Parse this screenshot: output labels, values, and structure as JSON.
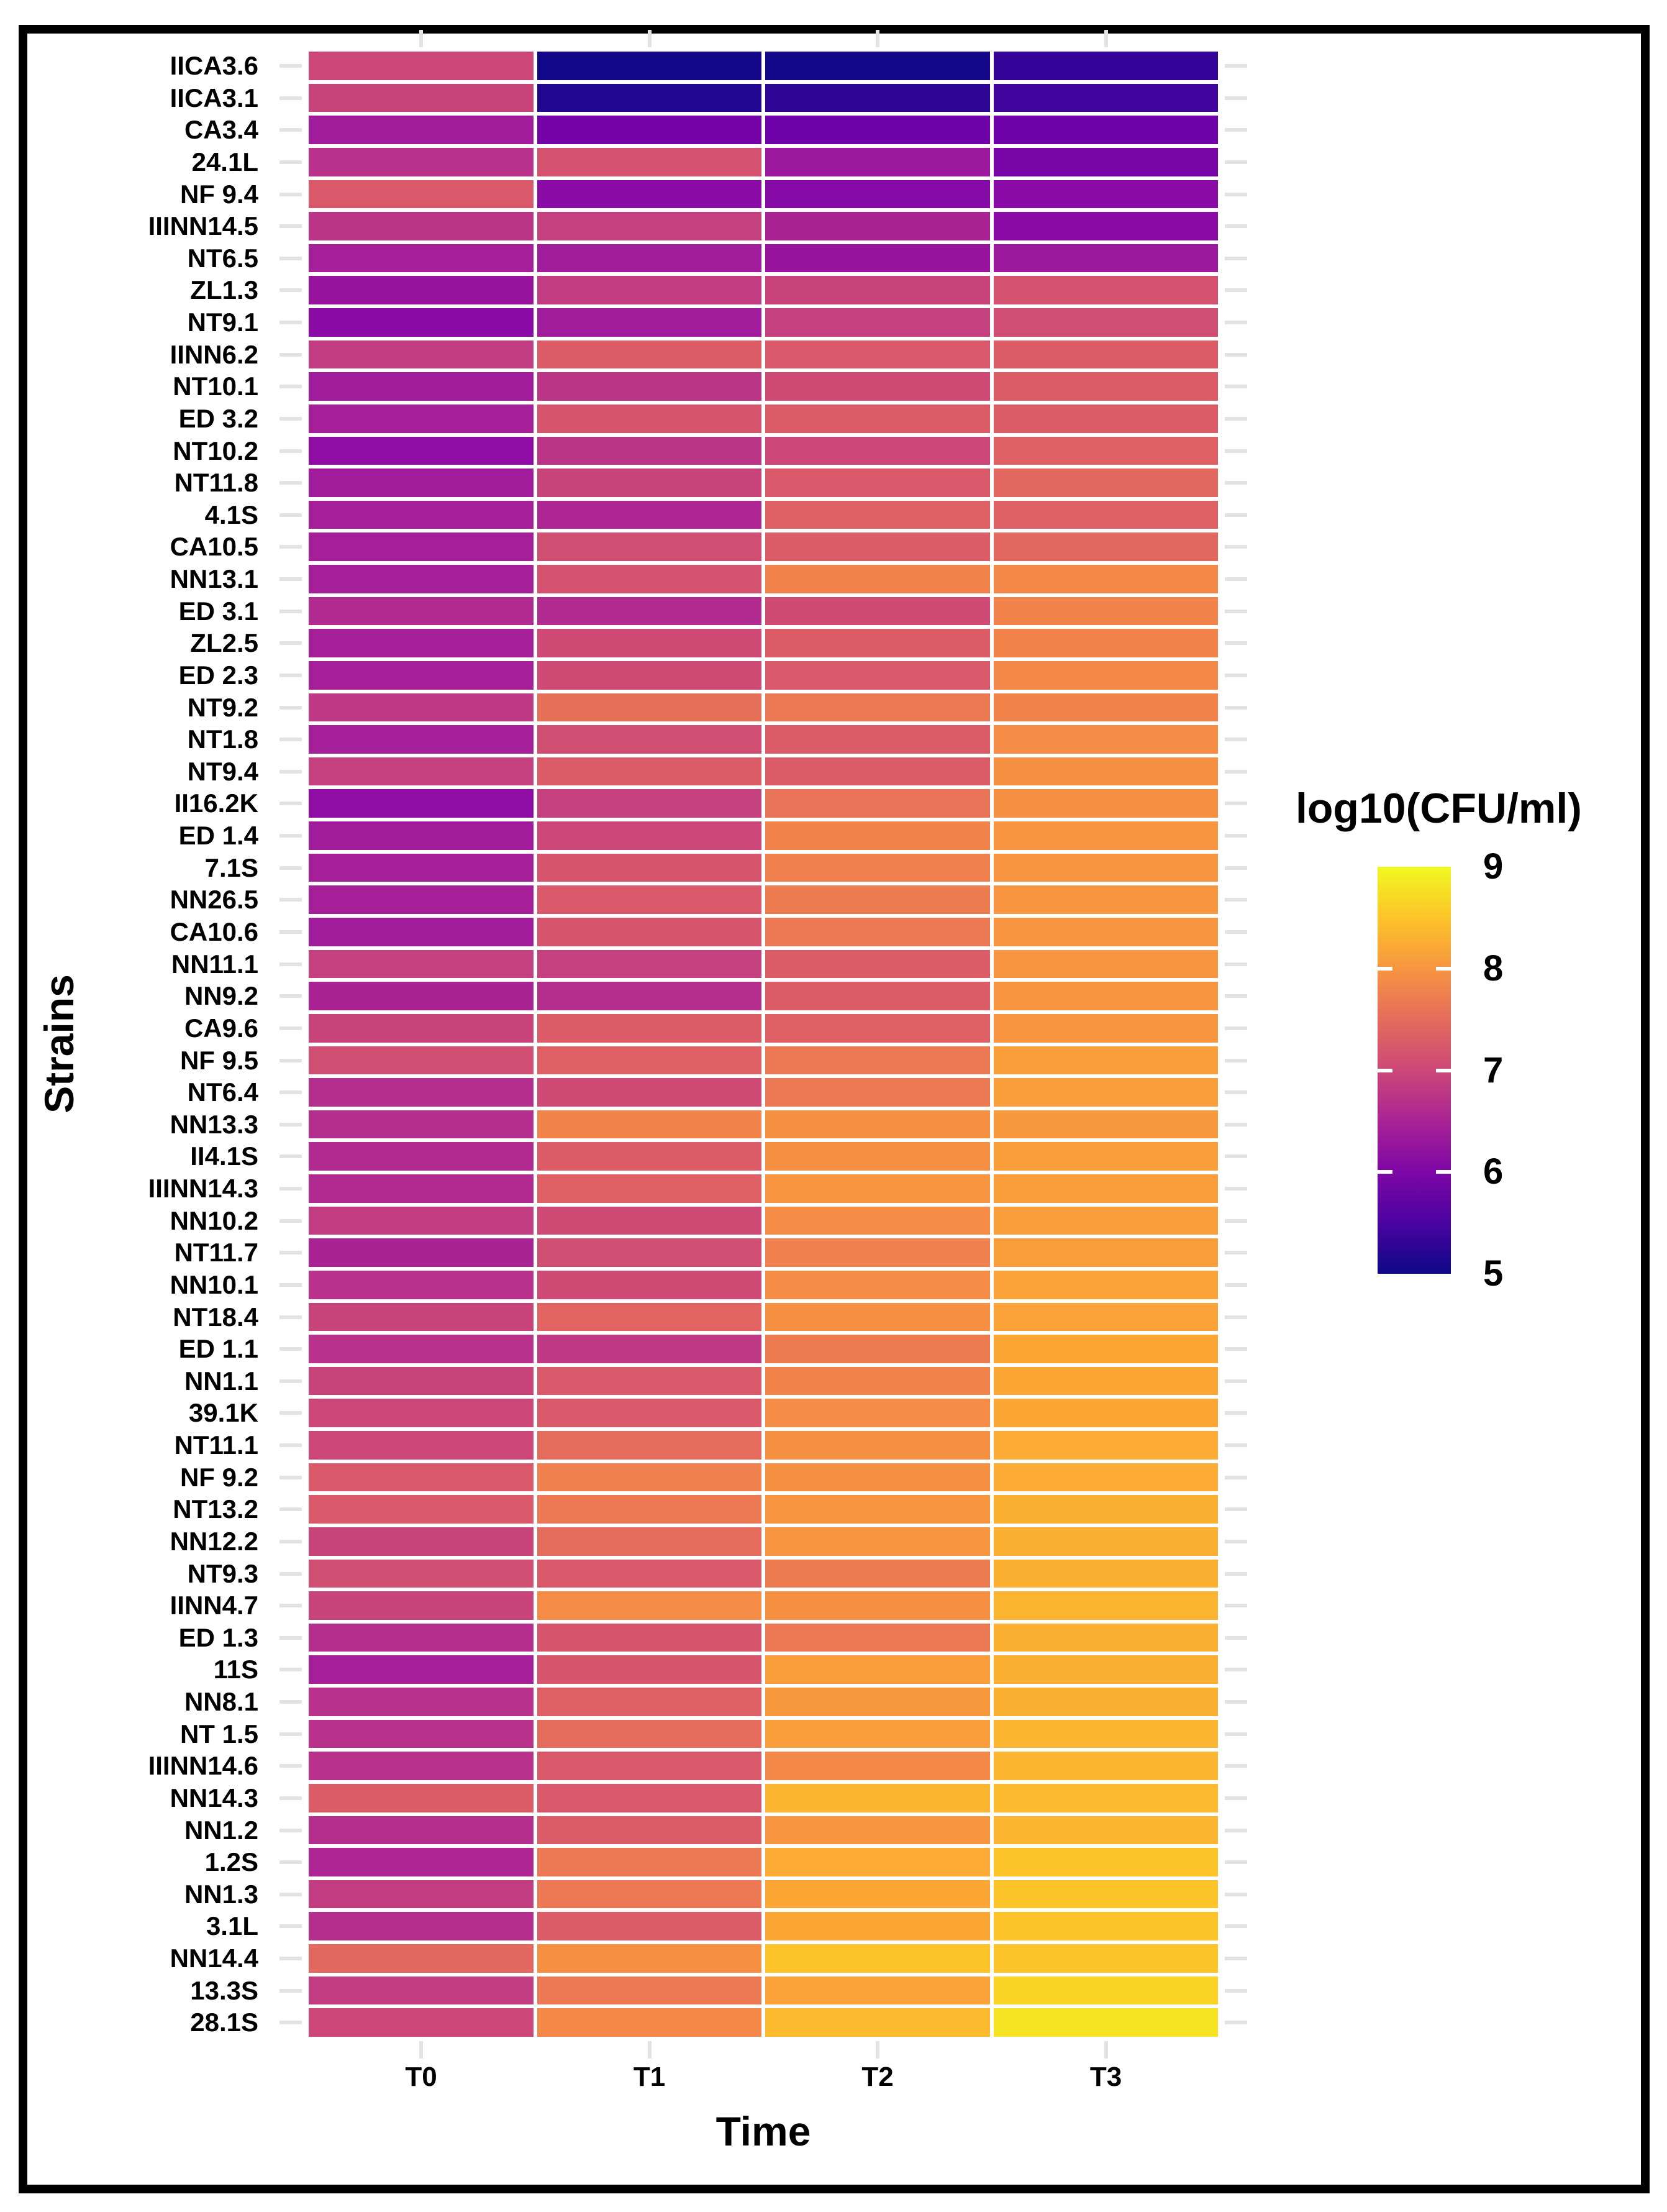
{
  "chart_data": {
    "type": "heatmap",
    "title": "",
    "xlabel": "Time",
    "ylabel": "Strains",
    "x_categories": [
      "T0",
      "T1",
      "T2",
      "T3"
    ],
    "value_range": [
      5,
      9
    ],
    "colormap": "plasma",
    "grid": "off",
    "legend": {
      "title": "log10(CFU/ml)",
      "position": "right",
      "ticks": [
        "9",
        "8",
        "7",
        "6",
        "5"
      ]
    },
    "rows": [
      {
        "strain": "IICA3.6",
        "values": [
          7.0,
          5.05,
          5.05,
          5.3
        ]
      },
      {
        "strain": "IICA3.1",
        "values": [
          6.95,
          5.15,
          5.25,
          5.4
        ]
      },
      {
        "strain": "CA3.4",
        "values": [
          6.4,
          5.9,
          5.85,
          5.85
        ]
      },
      {
        "strain": "24.1L",
        "values": [
          6.7,
          7.15,
          6.35,
          5.95
        ]
      },
      {
        "strain": "NF 9.4",
        "values": [
          7.25,
          6.15,
          6.1,
          6.15
        ]
      },
      {
        "strain": "IIINN14.5",
        "values": [
          6.75,
          6.9,
          6.5,
          6.15
        ]
      },
      {
        "strain": "NT6.5",
        "values": [
          6.45,
          6.4,
          6.3,
          6.35
        ]
      },
      {
        "strain": "ZL1.3",
        "values": [
          6.3,
          6.85,
          6.95,
          7.15
        ]
      },
      {
        "strain": "NT9.1",
        "values": [
          6.15,
          6.4,
          6.9,
          7.1
        ]
      },
      {
        "strain": "IINN6.2",
        "values": [
          6.85,
          7.3,
          7.25,
          7.3
        ]
      },
      {
        "strain": "NT10.1",
        "values": [
          6.4,
          6.75,
          7.05,
          7.3
        ]
      },
      {
        "strain": "ED 3.2",
        "values": [
          6.45,
          7.2,
          7.3,
          7.3
        ]
      },
      {
        "strain": "NT10.2",
        "values": [
          6.2,
          6.75,
          7.0,
          7.35
        ]
      },
      {
        "strain": "NT11.8",
        "values": [
          6.4,
          6.95,
          7.25,
          7.45
        ]
      },
      {
        "strain": "4.1S",
        "values": [
          6.45,
          6.55,
          7.35,
          7.35
        ]
      },
      {
        "strain": "CA10.5",
        "values": [
          6.45,
          7.1,
          7.3,
          7.45
        ]
      },
      {
        "strain": "NN13.1",
        "values": [
          6.45,
          7.15,
          7.8,
          7.85
        ]
      },
      {
        "strain": "ED 3.1",
        "values": [
          6.6,
          6.6,
          7.05,
          7.8
        ]
      },
      {
        "strain": "ZL2.5",
        "values": [
          6.45,
          7.05,
          7.3,
          7.8
        ]
      },
      {
        "strain": "ED 2.3",
        "values": [
          6.45,
          7.05,
          7.25,
          7.85
        ]
      },
      {
        "strain": "NT9.2",
        "values": [
          6.8,
          7.55,
          7.65,
          7.8
        ]
      },
      {
        "strain": "NT1.8",
        "values": [
          6.45,
          7.1,
          7.3,
          7.9
        ]
      },
      {
        "strain": "NT9.4",
        "values": [
          6.9,
          7.3,
          7.3,
          7.95
        ]
      },
      {
        "strain": "II16.2K",
        "values": [
          6.2,
          6.9,
          7.6,
          7.95
        ]
      },
      {
        "strain": "ED 1.4",
        "values": [
          6.4,
          7.0,
          7.8,
          8.0
        ]
      },
      {
        "strain": "7.1S",
        "values": [
          6.45,
          7.2,
          7.75,
          8.0
        ]
      },
      {
        "strain": "NN26.5",
        "values": [
          6.45,
          7.25,
          7.7,
          8.0
        ]
      },
      {
        "strain": "CA10.6",
        "values": [
          6.4,
          7.2,
          7.65,
          8.0
        ]
      },
      {
        "strain": "NN11.1",
        "values": [
          6.9,
          6.9,
          7.3,
          8.0
        ]
      },
      {
        "strain": "NN9.2",
        "values": [
          6.5,
          6.65,
          7.3,
          8.0
        ]
      },
      {
        "strain": "CA9.6",
        "values": [
          6.95,
          7.3,
          7.35,
          8.0
        ]
      },
      {
        "strain": "NF 9.5",
        "values": [
          7.1,
          7.35,
          7.65,
          8.1
        ]
      },
      {
        "strain": "NT6.4",
        "values": [
          6.65,
          7.05,
          7.65,
          8.1
        ]
      },
      {
        "strain": "NN13.3",
        "values": [
          6.65,
          7.8,
          7.95,
          8.05
        ]
      },
      {
        "strain": "II4.1S",
        "values": [
          6.6,
          7.3,
          7.95,
          8.1
        ]
      },
      {
        "strain": "IIINN14.3",
        "values": [
          6.6,
          7.35,
          8.0,
          8.1
        ]
      },
      {
        "strain": "NN10.2",
        "values": [
          6.85,
          7.05,
          7.9,
          8.1
        ]
      },
      {
        "strain": "NT11.7",
        "values": [
          6.5,
          7.1,
          7.75,
          8.1
        ]
      },
      {
        "strain": "NN10.1",
        "values": [
          6.7,
          7.05,
          7.9,
          8.15
        ]
      },
      {
        "strain": "NT18.4",
        "values": [
          6.95,
          7.4,
          7.95,
          8.15
        ]
      },
      {
        "strain": "ED 1.1",
        "values": [
          6.7,
          6.8,
          7.7,
          8.2
        ]
      },
      {
        "strain": "NN1.1",
        "values": [
          6.95,
          7.25,
          7.8,
          8.2
        ]
      },
      {
        "strain": "39.1K",
        "values": [
          7.0,
          7.25,
          7.9,
          8.2
        ]
      },
      {
        "strain": "NT11.1",
        "values": [
          7.0,
          7.5,
          7.95,
          8.25
        ]
      },
      {
        "strain": "NF 9.2",
        "values": [
          7.25,
          7.75,
          7.95,
          8.25
        ]
      },
      {
        "strain": "NT13.2",
        "values": [
          7.25,
          7.65,
          8.0,
          8.3
        ]
      },
      {
        "strain": "NN12.2",
        "values": [
          6.95,
          7.5,
          8.0,
          8.3
        ]
      },
      {
        "strain": "NT9.3",
        "values": [
          7.1,
          7.25,
          7.7,
          8.3
        ]
      },
      {
        "strain": "IINN4.7",
        "values": [
          6.95,
          7.9,
          7.95,
          8.35
        ]
      },
      {
        "strain": "ED 1.3",
        "values": [
          6.65,
          7.2,
          7.65,
          8.3
        ]
      },
      {
        "strain": "11S",
        "values": [
          6.45,
          7.2,
          8.1,
          8.3
        ]
      },
      {
        "strain": "NN8.1",
        "values": [
          6.7,
          7.35,
          8.05,
          8.3
        ]
      },
      {
        "strain": "NT 1.5",
        "values": [
          6.7,
          7.5,
          8.1,
          8.35
        ]
      },
      {
        "strain": "IIINN14.6",
        "values": [
          6.7,
          7.25,
          7.85,
          8.35
        ]
      },
      {
        "strain": "NN14.3",
        "values": [
          7.3,
          7.25,
          8.35,
          8.4
        ]
      },
      {
        "strain": "NN1.2",
        "values": [
          6.65,
          7.3,
          8.0,
          8.35
        ]
      },
      {
        "strain": "1.2S",
        "values": [
          6.55,
          7.65,
          8.25,
          8.5
        ]
      },
      {
        "strain": "NN1.3",
        "values": [
          6.85,
          7.65,
          8.2,
          8.5
        ]
      },
      {
        "strain": "3.1L",
        "values": [
          6.65,
          7.3,
          8.2,
          8.5
        ]
      },
      {
        "strain": "NN14.4",
        "values": [
          7.45,
          7.95,
          8.5,
          8.5
        ]
      },
      {
        "strain": "13.3S",
        "values": [
          6.85,
          7.65,
          8.15,
          8.65
        ]
      },
      {
        "strain": "28.1S",
        "values": [
          7.0,
          7.85,
          8.4,
          8.8
        ]
      }
    ]
  }
}
